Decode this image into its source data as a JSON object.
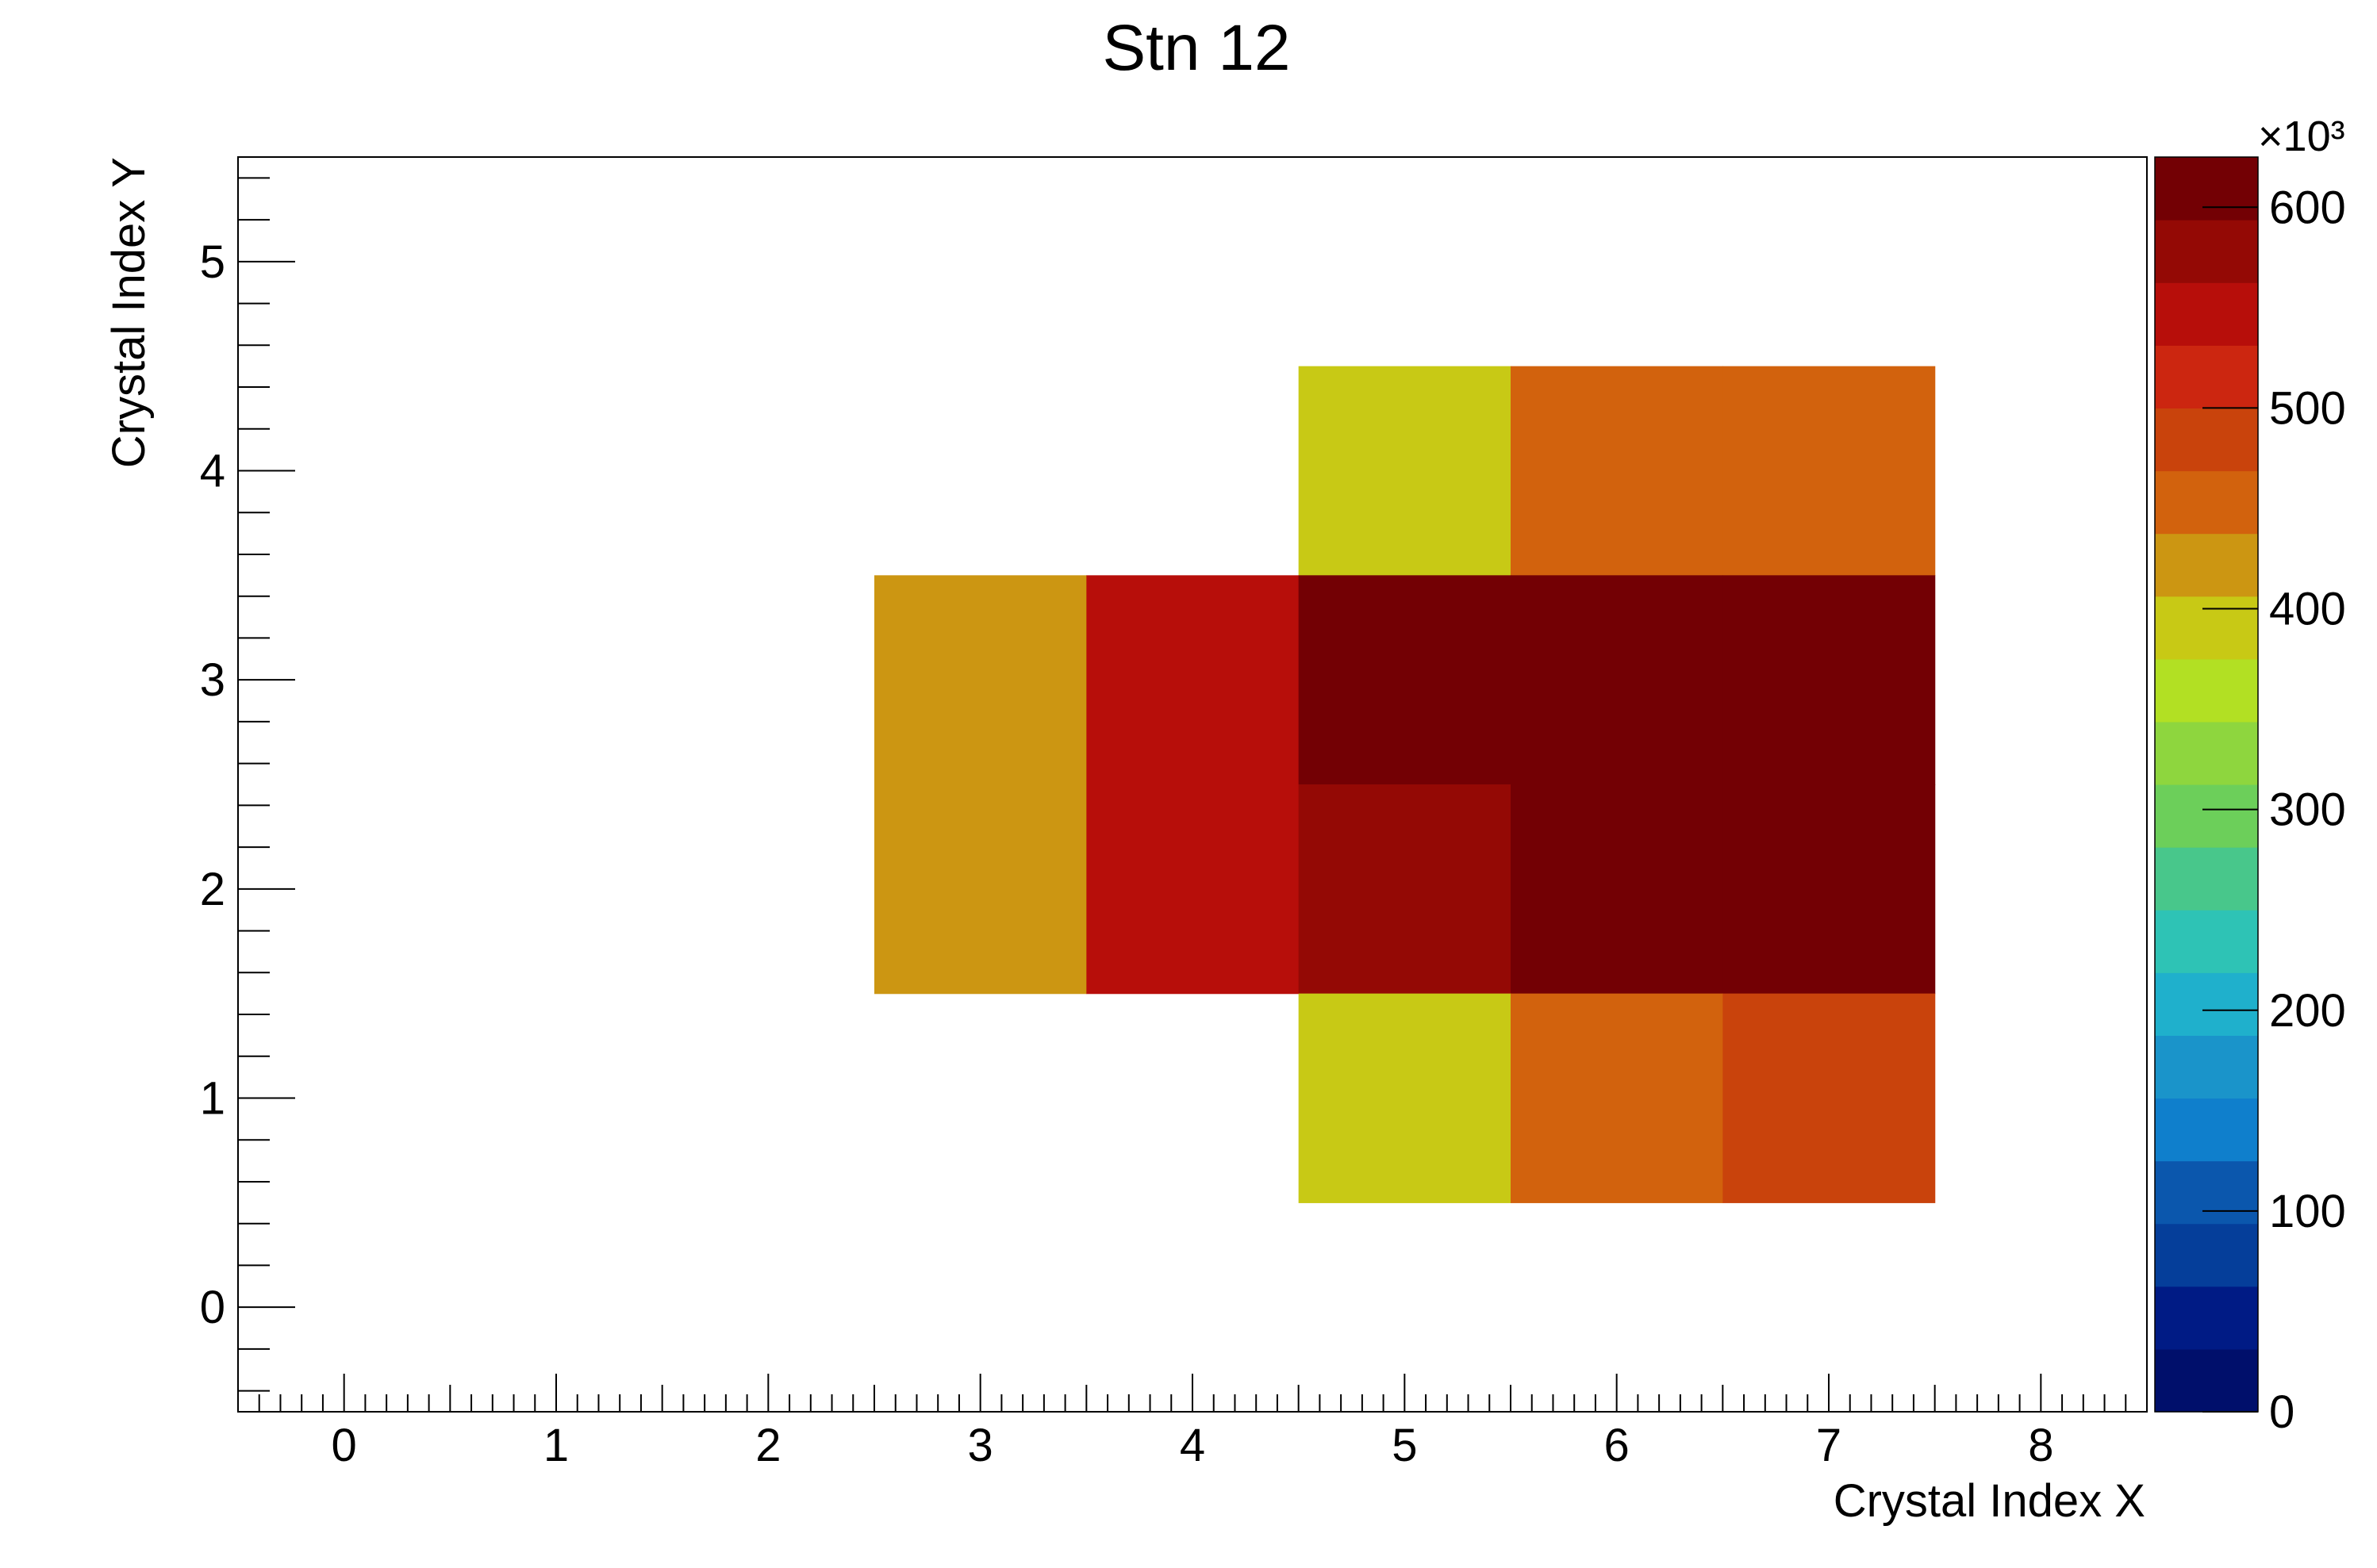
{
  "chart_data": {
    "type": "heatmap",
    "title": "Stn 12",
    "xlabel": "Crystal Index X",
    "ylabel": "Crystal Index Y",
    "xlim": [
      -0.5,
      8.5
    ],
    "ylim": [
      -0.5,
      5.5
    ],
    "x_ticks": [
      0,
      1,
      2,
      3,
      4,
      5,
      6,
      7,
      8
    ],
    "y_ticks": [
      0,
      1,
      2,
      3,
      4,
      5
    ],
    "cells": [
      {
        "x": 5,
        "y": 4,
        "value": 395000
      },
      {
        "x": 6,
        "y": 4,
        "value": 455000
      },
      {
        "x": 7,
        "y": 4,
        "value": 455000
      },
      {
        "x": 3,
        "y": 3,
        "value": 425000
      },
      {
        "x": 4,
        "y": 3,
        "value": 545000
      },
      {
        "x": 5,
        "y": 3,
        "value": 625000
      },
      {
        "x": 6,
        "y": 3,
        "value": 625000
      },
      {
        "x": 7,
        "y": 3,
        "value": 625000
      },
      {
        "x": 3,
        "y": 2,
        "value": 425000
      },
      {
        "x": 4,
        "y": 2,
        "value": 545000
      },
      {
        "x": 5,
        "y": 2,
        "value": 590000
      },
      {
        "x": 6,
        "y": 2,
        "value": 625000
      },
      {
        "x": 7,
        "y": 2,
        "value": 625000
      },
      {
        "x": 5,
        "y": 1,
        "value": 395000
      },
      {
        "x": 6,
        "y": 1,
        "value": 455000
      },
      {
        "x": 7,
        "y": 1,
        "value": 485000
      }
    ],
    "colorbar": {
      "min": 0,
      "max": 625000,
      "multiplier_label": "×10³",
      "tick_values": [
        0,
        100000,
        200000,
        300000,
        400000,
        500000,
        600000
      ],
      "tick_labels": [
        "0",
        "100",
        "200",
        "300",
        "400",
        "500",
        "600"
      ],
      "colors": [
        "#000f6b",
        "#001b85",
        "#053e9a",
        "#0b57ad",
        "#0f7fcc",
        "#1a94ca",
        "#1fb0cc",
        "#2ec3b5",
        "#48c78b",
        "#6ccf5a",
        "#8ed63e",
        "#b2e023",
        "#c8c915",
        "#cc9612",
        "#d2620d",
        "#c9430c",
        "#cc2610",
        "#b70e0a",
        "#940905",
        "#730004"
      ]
    },
    "grid": false,
    "legend": "colorbar-right"
  }
}
